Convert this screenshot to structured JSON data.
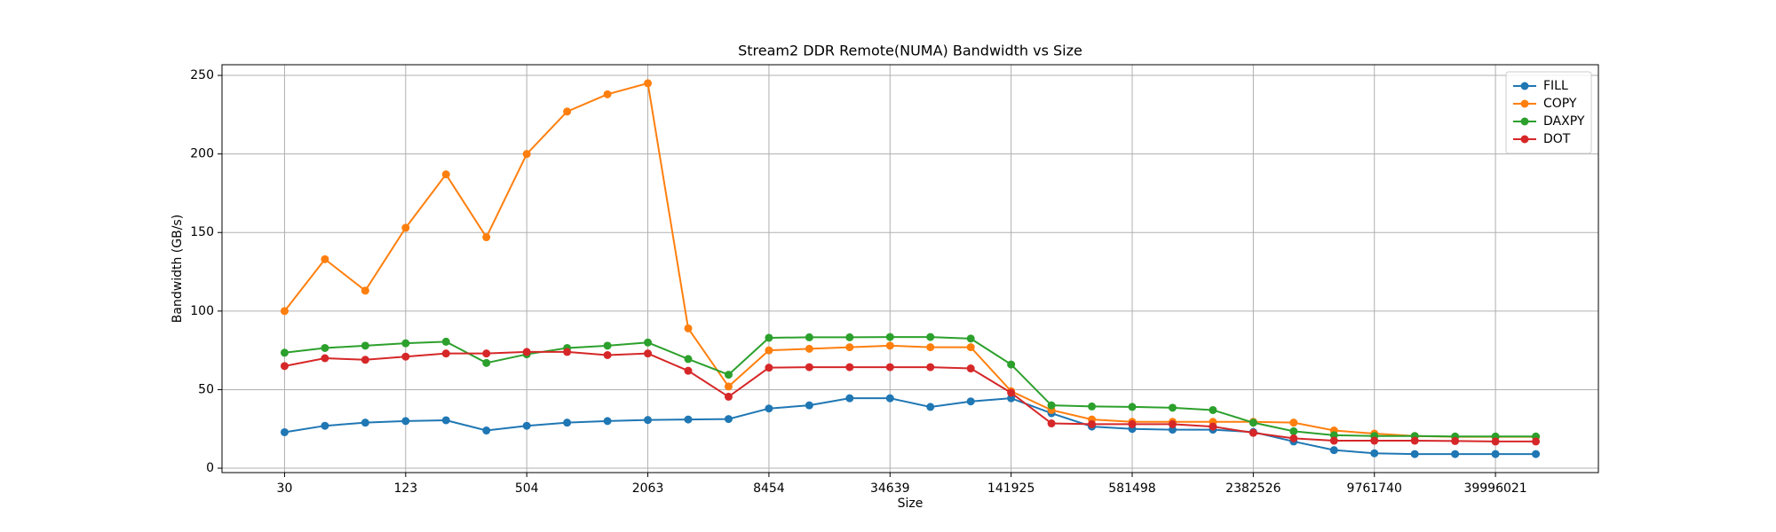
{
  "chart_data": {
    "type": "line",
    "title": "Stream2 DDR Remote(NUMA) Bandwidth vs Size",
    "xlabel": "Size",
    "ylabel": "Bandwidth (GB/s)",
    "categories": [
      "30",
      null,
      null,
      "123",
      null,
      null,
      "504",
      null,
      null,
      "2063",
      null,
      null,
      "8454",
      null,
      null,
      "34639",
      null,
      null,
      "141925",
      null,
      null,
      "581498",
      null,
      null,
      "2382526",
      null,
      null,
      "9761740",
      null,
      null,
      "39996021",
      null
    ],
    "series": [
      {
        "name": "FILL",
        "color": "#1f77b4",
        "values": [
          22.9,
          27,
          29,
          30,
          30.5,
          24,
          27,
          29,
          30,
          30.7,
          31,
          31.3,
          38,
          40,
          44.5,
          44.5,
          39,
          42.5,
          44.5,
          35,
          26.5,
          25,
          24.5,
          24.5,
          23,
          17,
          11.5,
          9.5,
          9,
          9,
          9,
          9
        ]
      },
      {
        "name": "COPY",
        "color": "#ff7f0e",
        "values": [
          100,
          133,
          113,
          153,
          187,
          147,
          200,
          227,
          238,
          245,
          89,
          52,
          75,
          76,
          77,
          78,
          77,
          77,
          49,
          37,
          31,
          29.5,
          29.5,
          29.5,
          29.5,
          29,
          24,
          22,
          20.5,
          20,
          20,
          20
        ]
      },
      {
        "name": "DAXPY",
        "color": "#2ca02c",
        "values": [
          73.5,
          76.5,
          78,
          79.5,
          80.5,
          67,
          72.5,
          76.5,
          78,
          80,
          69.5,
          59.5,
          83,
          83.3,
          83.3,
          83.5,
          83.5,
          82.5,
          66,
          40,
          39.3,
          39,
          38.5,
          37,
          29,
          23.5,
          21,
          20.5,
          20.5,
          20.2,
          20.2,
          20.2
        ]
      },
      {
        "name": "DOT",
        "color": "#d62728",
        "values": [
          65,
          70,
          69,
          71,
          73,
          73,
          74,
          74,
          72,
          73,
          62,
          45.5,
          64,
          64.3,
          64.3,
          64.3,
          64.3,
          63.5,
          48,
          28.5,
          28,
          28,
          28,
          26.5,
          22.5,
          19,
          17.5,
          17.5,
          17.5,
          17.3,
          17,
          17
        ]
      }
    ],
    "ylim": [
      -2.8,
      256.8
    ],
    "yticks": [
      0,
      50,
      100,
      150,
      200,
      250
    ],
    "grid": true,
    "legend": "upper right"
  }
}
